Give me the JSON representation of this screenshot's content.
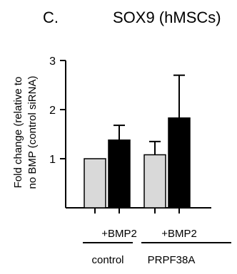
{
  "panel_label": "C.",
  "chart_data": {
    "type": "bar",
    "title": "SOX9 (hMSCs)",
    "ylabel_lines": [
      "Fold change (relative to",
      "no BMP (control siRNA)"
    ],
    "ylim": [
      0,
      3
    ],
    "yticks": [
      1,
      2,
      3
    ],
    "grid": false,
    "legend": "none",
    "bars": [
      {
        "group": "control",
        "treatment": "",
        "value": 1.0,
        "error": 0,
        "color": "#d9d9d9"
      },
      {
        "group": "control",
        "treatment": "+BMP2",
        "value": 1.38,
        "error": 0.3,
        "color": "#000000"
      },
      {
        "group": "PRPF38A",
        "treatment": "",
        "value": 1.08,
        "error": 0.27,
        "color": "#d9d9d9"
      },
      {
        "group": "PRPF38A",
        "treatment": "+BMP2",
        "value": 1.83,
        "error": 0.87,
        "color": "#000000"
      }
    ],
    "treatment_labels": [
      "+BMP2",
      "+BMP2"
    ],
    "group_labels": [
      "control",
      "PRPF38A"
    ]
  }
}
